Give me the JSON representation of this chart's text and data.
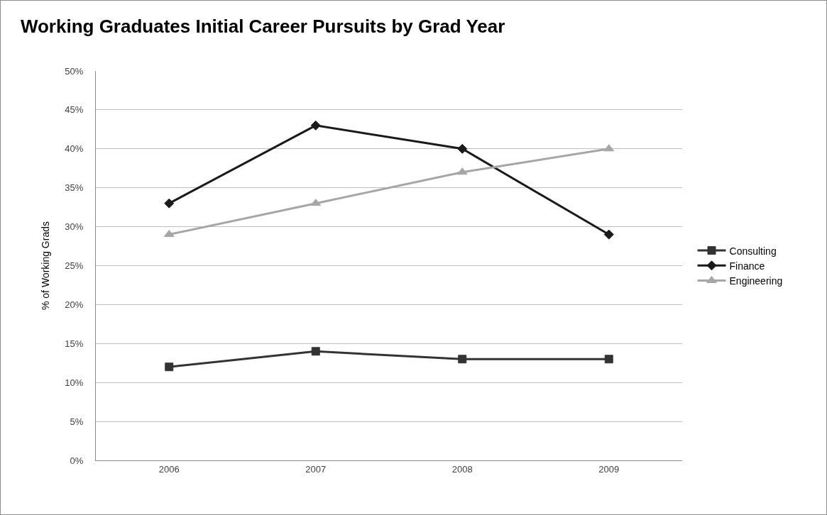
{
  "chart_data": {
    "type": "line",
    "title": "Working Graduates Initial Career Pursuits by Grad Year",
    "ylabel": "% of Working Grads",
    "categories": [
      "2006",
      "2007",
      "2008",
      "2009"
    ],
    "series": [
      {
        "name": "Consulting",
        "color": "#333333",
        "marker": "square",
        "values": [
          12,
          14,
          13,
          13
        ]
      },
      {
        "name": "Finance",
        "color": "#1a1a1a",
        "marker": "diamond",
        "values": [
          33,
          43,
          40,
          29
        ]
      },
      {
        "name": "Engineering",
        "color": "#a6a6a6",
        "marker": "triangle",
        "values": [
          29,
          33,
          37,
          40
        ]
      }
    ],
    "ylim": [
      0,
      50
    ],
    "yticks": [
      {
        "value": 0,
        "label": "0%"
      },
      {
        "value": 5,
        "label": "5%"
      },
      {
        "value": 10,
        "label": "10%"
      },
      {
        "value": 15,
        "label": "15%"
      },
      {
        "value": 20,
        "label": "20%"
      },
      {
        "value": 25,
        "label": "25%"
      },
      {
        "value": 30,
        "label": "30%"
      },
      {
        "value": 35,
        "label": "35%"
      },
      {
        "value": 40,
        "label": "40%"
      },
      {
        "value": 45,
        "label": "45%"
      },
      {
        "value": 50,
        "label": "50%"
      }
    ],
    "grid": "y",
    "legend": "right",
    "line_style": "solid"
  }
}
